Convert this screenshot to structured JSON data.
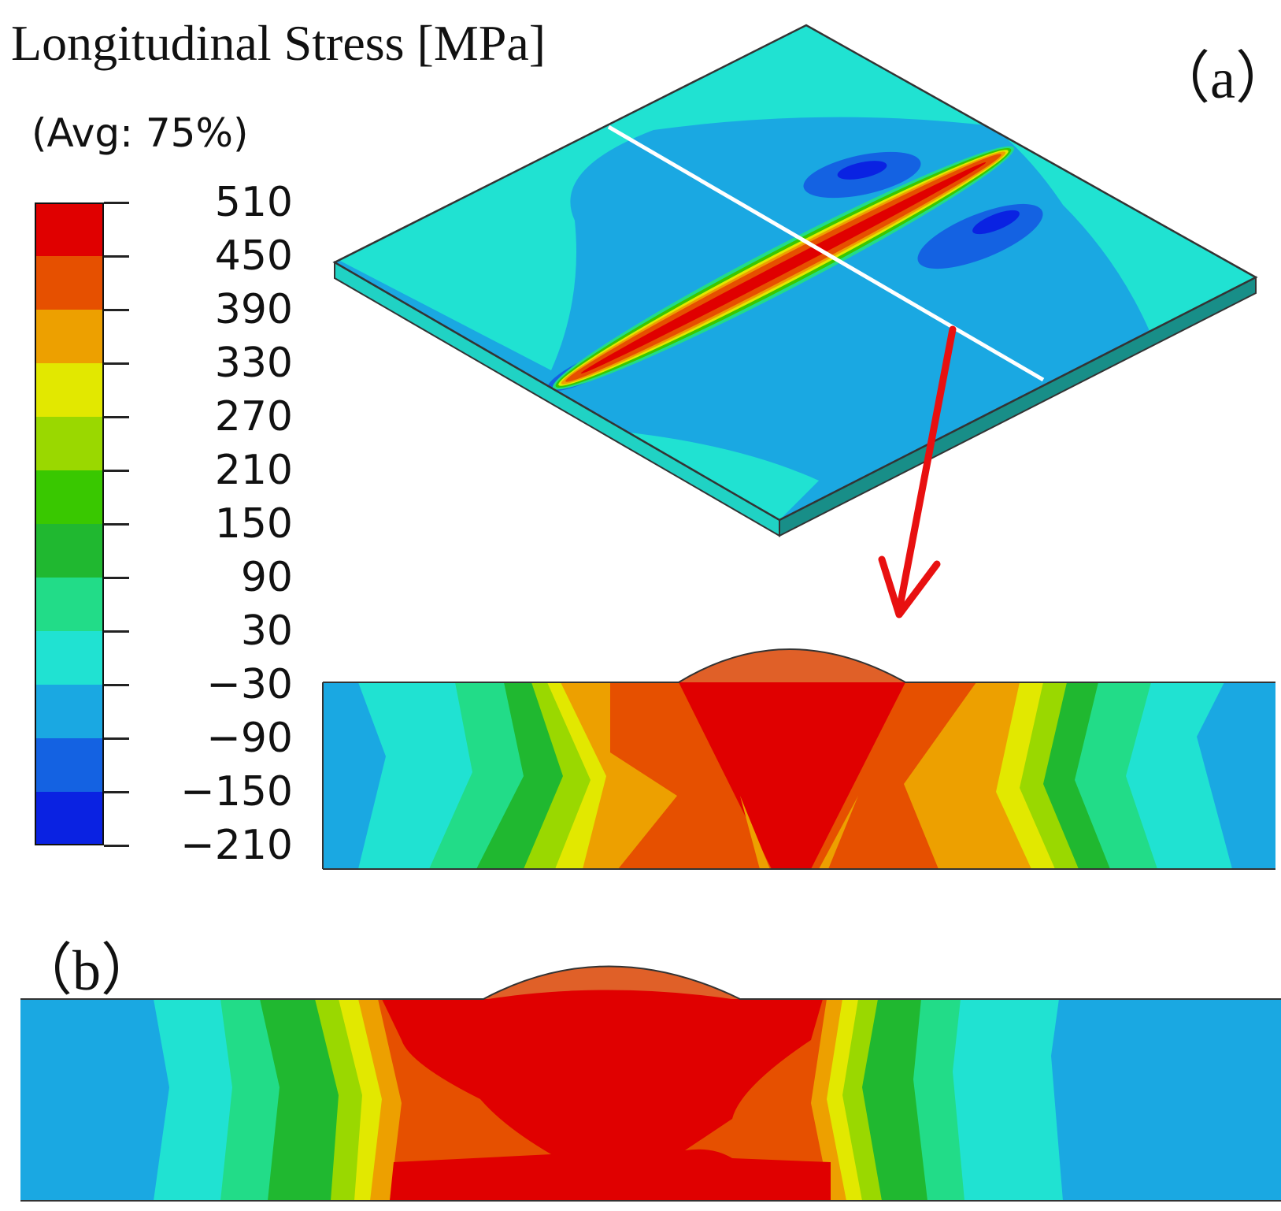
{
  "figure": {
    "title": "Longitudinal Stress [MPa]",
    "average": "(Avg: 75%)",
    "panel_a_label": "（a）",
    "panel_b_label": "（b）"
  },
  "legend": {
    "levels": [
      "510",
      "450",
      "390",
      "330",
      "270",
      "210",
      "150",
      "90",
      "30",
      "−30",
      "−90",
      "−150",
      "−210"
    ],
    "colors": [
      "#e00000",
      "#e65000",
      "#eda000",
      "#e2e800",
      "#9ad800",
      "#39c800",
      "#20b830",
      "#22dc88",
      "#20e2d2",
      "#1aa8e2",
      "#1462e2",
      "#0a22e2"
    ]
  },
  "colors": {
    "weld_cap": "#e06028",
    "plate_edge": "#188e88",
    "outline": "#333333",
    "section_line": "#ffffff",
    "arrow": "#e81010"
  }
}
